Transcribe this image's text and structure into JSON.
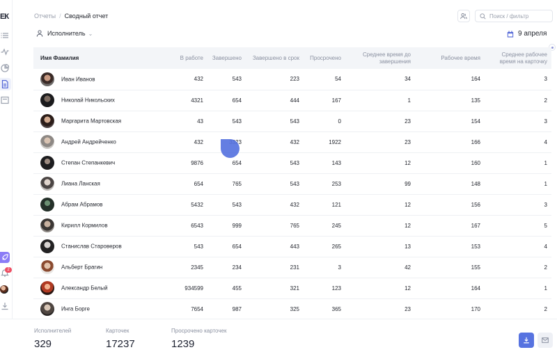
{
  "breadcrumb": {
    "parent": "Отчеты",
    "separator": "/",
    "current": "Сводный отчет"
  },
  "search": {
    "placeholder": "Поиск / фильтр"
  },
  "filter": {
    "label": "Исполнитель"
  },
  "date": {
    "label": "9 апреля"
  },
  "colors": {
    "accent": "#5773e0",
    "header_bg": "#f3f5f8",
    "purple": "#8b7cf6",
    "badge": "#ef4f63"
  },
  "sidebar": {
    "logo": "ЕК",
    "badge_count": "2",
    "icons": [
      "list-icon",
      "activity-icon",
      "chart-icon",
      "document-icon",
      "archive-icon",
      "rocket-icon",
      "bell-icon",
      "download-icon",
      "help-icon",
      "brand-icon"
    ]
  },
  "table": {
    "columns": [
      {
        "label": "Имя Фамилия"
      },
      {
        "label": "В работе"
      },
      {
        "label": "Завершено"
      },
      {
        "label": "Завершено в срок"
      },
      {
        "label": "Просрочено"
      },
      {
        "label": "Среднее время до завершения"
      },
      {
        "label": "Рабочее время"
      },
      {
        "label": "Среднее рабочее время на карточку"
      }
    ],
    "rows": [
      {
        "name": "Иван Иванов",
        "in_work": "432",
        "done": "543",
        "on_time": "223",
        "overdue": "54",
        "avg_time": "34",
        "work_time": "164",
        "avg_card": "3"
      },
      {
        "name": "Николай Никольских",
        "in_work": "4321",
        "done": "654",
        "on_time": "444",
        "overdue": "167",
        "avg_time": "1",
        "work_time": "135",
        "avg_card": "2"
      },
      {
        "name": "Маргарита Мартовская",
        "in_work": "43",
        "done": "543",
        "on_time": "543",
        "overdue": "0",
        "avg_time": "23",
        "work_time": "154",
        "avg_card": "3"
      },
      {
        "name": "Андрей Андрейченко",
        "in_work": "432",
        "done": "3323",
        "on_time": "432",
        "overdue": "1922",
        "avg_time": "23",
        "work_time": "166",
        "avg_card": "4"
      },
      {
        "name": "Степан Степанкевич",
        "in_work": "9876",
        "done": "654",
        "on_time": "543",
        "overdue": "143",
        "avg_time": "12",
        "work_time": "160",
        "avg_card": "1"
      },
      {
        "name": "Лиана Ланская",
        "in_work": "654",
        "done": "765",
        "on_time": "543",
        "overdue": "253",
        "avg_time": "99",
        "work_time": "148",
        "avg_card": "1"
      },
      {
        "name": "Абрам Абрамов",
        "in_work": "5432",
        "done": "543",
        "on_time": "432",
        "overdue": "121",
        "avg_time": "12",
        "work_time": "156",
        "avg_card": "3"
      },
      {
        "name": "Кирилл Кормилов",
        "in_work": "6543",
        "done": "999",
        "on_time": "765",
        "overdue": "245",
        "avg_time": "12",
        "work_time": "167",
        "avg_card": "5"
      },
      {
        "name": "Станислав Староверов",
        "in_work": "543",
        "done": "654",
        "on_time": "443",
        "overdue": "265",
        "avg_time": "13",
        "work_time": "153",
        "avg_card": "4"
      },
      {
        "name": "Альберт Брагин",
        "in_work": "2345",
        "done": "234",
        "on_time": "231",
        "overdue": "3",
        "avg_time": "42",
        "work_time": "155",
        "avg_card": "2"
      },
      {
        "name": "Александр Белый",
        "in_work": "934599",
        "done": "455",
        "on_time": "321",
        "overdue": "123",
        "avg_time": "12",
        "work_time": "164",
        "avg_card": "1"
      },
      {
        "name": "Инга Борге",
        "in_work": "7654",
        "done": "987",
        "on_time": "325",
        "overdue": "365",
        "avg_time": "23",
        "work_time": "170",
        "avg_card": "2"
      }
    ]
  },
  "summary": {
    "executors_label": "Исполнителей",
    "executors_value": "329",
    "cards_label": "Карточек",
    "cards_value": "17237",
    "overdue_label": "Просрочено карточек",
    "overdue_value": "1239"
  }
}
